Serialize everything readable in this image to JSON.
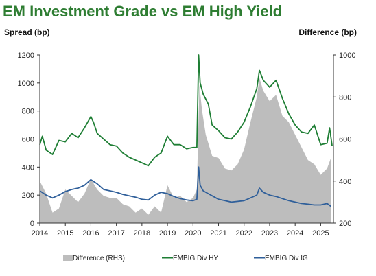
{
  "chart_data": {
    "type": "line",
    "title": "EM Investment Grade vs EM High Yield",
    "ylabel_left": "Spread (bp)",
    "ylabel_right": "Difference (bp)",
    "xlim": [
      2014.0,
      2025.5
    ],
    "ylim_left": [
      0,
      1200
    ],
    "ylim_right": [
      200,
      1000
    ],
    "x_ticks": [
      "2014",
      "2015",
      "2016",
      "2017",
      "2018",
      "2019",
      "2020",
      "2021",
      "2022",
      "2023",
      "2024",
      "2025"
    ],
    "y_left_ticks": [
      "0",
      "200",
      "400",
      "600",
      "800",
      "1000",
      "1200"
    ],
    "y_right_ticks": [
      "200",
      "400",
      "600",
      "800",
      "1000"
    ],
    "legend_position": "bottom",
    "series": [
      {
        "name": "Difference (RHS)",
        "axis": "right",
        "style": "area",
        "color": "#bdbdbd",
        "x": [
          2014.0,
          2014.25,
          2014.5,
          2014.75,
          2015.0,
          2015.25,
          2015.5,
          2015.75,
          2016.0,
          2016.25,
          2016.5,
          2016.75,
          2017.0,
          2017.25,
          2017.5,
          2017.75,
          2018.0,
          2018.25,
          2018.5,
          2018.75,
          2019.0,
          2019.25,
          2019.5,
          2019.75,
          2020.0,
          2020.15,
          2020.25,
          2020.35,
          2020.5,
          2020.75,
          2021.0,
          2021.25,
          2021.5,
          2021.75,
          2022.0,
          2022.25,
          2022.5,
          2022.6,
          2022.75,
          2023.0,
          2023.25,
          2023.5,
          2023.75,
          2024.0,
          2024.25,
          2024.5,
          2024.75,
          2025.0,
          2025.25,
          2025.4
        ],
        "values": [
          400,
          340,
          250,
          270,
          360,
          330,
          300,
          340,
          410,
          360,
          330,
          320,
          320,
          290,
          280,
          250,
          270,
          240,
          280,
          250,
          380,
          320,
          330,
          300,
          320,
          360,
          860,
          740,
          620,
          520,
          510,
          460,
          450,
          480,
          550,
          680,
          800,
          890,
          830,
          780,
          810,
          710,
          680,
          620,
          560,
          500,
          480,
          430,
          460,
          510
        ]
      },
      {
        "name": "EMBIG Div HY",
        "axis": "left",
        "style": "line",
        "color": "#1e7e34",
        "x": [
          2014.0,
          2014.1,
          2014.25,
          2014.5,
          2014.75,
          2015.0,
          2015.25,
          2015.5,
          2015.75,
          2016.0,
          2016.1,
          2016.25,
          2016.5,
          2016.75,
          2017.0,
          2017.25,
          2017.5,
          2017.75,
          2018.0,
          2018.25,
          2018.5,
          2018.75,
          2019.0,
          2019.25,
          2019.5,
          2019.75,
          2020.0,
          2020.15,
          2020.22,
          2020.28,
          2020.4,
          2020.6,
          2020.75,
          2021.0,
          2021.25,
          2021.5,
          2021.75,
          2022.0,
          2022.25,
          2022.5,
          2022.6,
          2022.75,
          2023.0,
          2023.25,
          2023.5,
          2023.75,
          2024.0,
          2024.25,
          2024.5,
          2024.75,
          2025.0,
          2025.25,
          2025.35,
          2025.45
        ],
        "values": [
          560,
          620,
          520,
          490,
          590,
          580,
          640,
          610,
          680,
          760,
          720,
          640,
          600,
          560,
          550,
          500,
          470,
          450,
          430,
          410,
          470,
          500,
          620,
          560,
          560,
          530,
          540,
          540,
          1200,
          1000,
          920,
          850,
          700,
          660,
          610,
          600,
          650,
          720,
          830,
          960,
          1090,
          1020,
          970,
          1020,
          890,
          780,
          700,
          650,
          640,
          700,
          560,
          570,
          680,
          550
        ]
      },
      {
        "name": "EMBIG Div IG",
        "axis": "left",
        "style": "line",
        "color": "#2f5f9a",
        "x": [
          2014.0,
          2014.25,
          2014.5,
          2014.75,
          2015.0,
          2015.25,
          2015.5,
          2015.75,
          2016.0,
          2016.25,
          2016.5,
          2016.75,
          2017.0,
          2017.25,
          2017.5,
          2017.75,
          2018.0,
          2018.25,
          2018.5,
          2018.75,
          2019.0,
          2019.25,
          2019.5,
          2019.75,
          2020.0,
          2020.15,
          2020.22,
          2020.28,
          2020.4,
          2020.6,
          2020.75,
          2021.0,
          2021.25,
          2021.5,
          2021.75,
          2022.0,
          2022.25,
          2022.5,
          2022.6,
          2022.75,
          2023.0,
          2023.25,
          2023.5,
          2023.75,
          2024.0,
          2024.25,
          2024.5,
          2024.75,
          2025.0,
          2025.25,
          2025.4
        ],
        "values": [
          230,
          200,
          180,
          200,
          225,
          240,
          250,
          270,
          310,
          280,
          240,
          230,
          220,
          205,
          195,
          185,
          170,
          165,
          200,
          220,
          210,
          190,
          175,
          165,
          160,
          170,
          400,
          270,
          230,
          210,
          195,
          170,
          160,
          150,
          155,
          160,
          180,
          200,
          250,
          220,
          200,
          190,
          175,
          160,
          150,
          140,
          135,
          130,
          130,
          140,
          120
        ]
      }
    ]
  }
}
